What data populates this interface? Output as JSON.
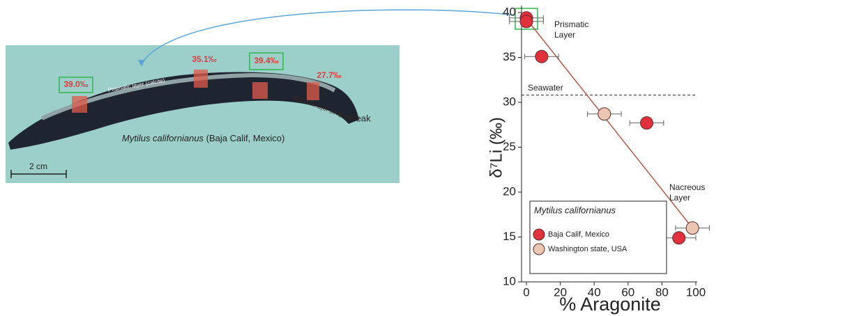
{
  "photo": {
    "labels": [
      "39.0‰",
      "35.1‰",
      "39.4‰",
      "27.7‰"
    ],
    "prismatic_layer": "Prismatic layer (calcite)",
    "nacreous_layer": "Nacreous layer (aragonite)",
    "beak": "Beak",
    "species": "Mytilus californianus",
    "location": "(Baja Calif, Mexico)",
    "scale_bar": "2 cm"
  },
  "chart_data": {
    "type": "scatter",
    "x_label": "% Aragonite",
    "y_label": "δ⁷Li (‰)",
    "xlim": [
      0,
      100
    ],
    "xticks": [
      0,
      20,
      40,
      60,
      80,
      100
    ],
    "ylim": [
      10,
      40
    ],
    "yticks": [
      10,
      15,
      20,
      25,
      30,
      35,
      40
    ],
    "legend_title": "Mytilus californianus",
    "legend_position": "lower-left",
    "series": [
      {
        "name": "Baja Calif, Mexico",
        "color": "#e0313c",
        "x": [
          0,
          0,
          9,
          71,
          90
        ],
        "values": [
          39.4,
          39.0,
          35.1,
          27.7,
          14.9
        ],
        "x_error": [
          10,
          10,
          10,
          10,
          10
        ],
        "y_error": [
          0.5,
          0.5,
          0.6,
          0.6,
          0.6
        ]
      },
      {
        "name": "Washington state, USA",
        "color": "#ebc6b2",
        "x": [
          46,
          98
        ],
        "values": [
          28.7,
          16.0
        ],
        "x_error": [
          10,
          10
        ],
        "y_error": [
          0.6,
          0.6
        ]
      }
    ],
    "fit_line": {
      "x": [
        0,
        98
      ],
      "values": [
        39.3,
        16.0
      ],
      "color": "#b5594a"
    },
    "seawater": {
      "label": "Seawater",
      "value": 30.8
    },
    "annotations": [
      {
        "lines": [
          "Prismatic",
          "Layer"
        ]
      },
      {
        "lines": [
          "Nacreous",
          "Layer"
        ]
      }
    ]
  }
}
